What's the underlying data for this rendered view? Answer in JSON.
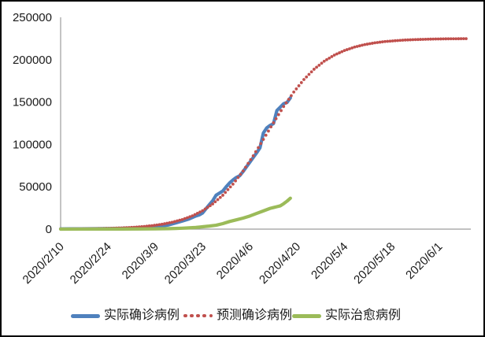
{
  "chart_data": {
    "type": "line",
    "title": "",
    "grid": "off",
    "legend_position": "bottom",
    "x_axis": {
      "tick_labels": [
        "2020/2/10",
        "2020/2/24",
        "2020/3/9",
        "2020/3/23",
        "2020/4/6",
        "2020/4/20",
        "2020/5/4",
        "2020/5/18",
        "2020/6/1"
      ],
      "tick_interval_days": 14,
      "domain_days": [
        0,
        120
      ],
      "label_rotation_deg": 45
    },
    "y_axis": {
      "tick_labels": [
        "0",
        "50000",
        "100000",
        "150000",
        "200000",
        "250000"
      ],
      "min": 0,
      "max": 250000,
      "tick_step": 50000
    },
    "series": [
      {
        "name": "实际确诊病例",
        "color": "#4F81BD",
        "style": "solid",
        "points": [
          [
            0,
            300
          ],
          [
            3,
            350
          ],
          [
            6,
            420
          ],
          [
            9,
            500
          ],
          [
            12,
            600
          ],
          [
            15,
            750
          ],
          [
            18,
            950
          ],
          [
            21,
            1300
          ],
          [
            24,
            1900
          ],
          [
            26,
            2400
          ],
          [
            28,
            3000
          ],
          [
            30,
            3700
          ],
          [
            32,
            5000
          ],
          [
            34,
            7200
          ],
          [
            36,
            9500
          ],
          [
            38,
            12000
          ],
          [
            40,
            15500
          ],
          [
            41,
            16700
          ],
          [
            42,
            19000
          ],
          [
            43,
            24000
          ],
          [
            44,
            28800
          ],
          [
            45,
            33500
          ],
          [
            46,
            40000
          ],
          [
            47,
            42500
          ],
          [
            48,
            45000
          ],
          [
            49,
            50000
          ],
          [
            50,
            54500
          ],
          [
            51,
            58000
          ],
          [
            52,
            61000
          ],
          [
            53,
            63000
          ],
          [
            54,
            68000
          ],
          [
            55,
            73500
          ],
          [
            56,
            79000
          ],
          [
            57,
            84500
          ],
          [
            58,
            90000
          ],
          [
            59,
            96000
          ],
          [
            60,
            113500
          ],
          [
            61,
            119500
          ],
          [
            62,
            122500
          ],
          [
            63,
            124500
          ],
          [
            64,
            140000
          ],
          [
            65,
            144000
          ],
          [
            66,
            148000
          ],
          [
            67,
            149500
          ],
          [
            68,
            155000
          ]
        ]
      },
      {
        "name": "预测确诊病例",
        "color": "#C0504D",
        "style": "dotted",
        "points": [
          [
            0,
            170
          ],
          [
            3,
            250
          ],
          [
            6,
            350
          ],
          [
            9,
            490
          ],
          [
            12,
            710
          ],
          [
            15,
            1000
          ],
          [
            18,
            1420
          ],
          [
            21,
            2010
          ],
          [
            24,
            2860
          ],
          [
            27,
            4050
          ],
          [
            30,
            5730
          ],
          [
            33,
            8070
          ],
          [
            36,
            11300
          ],
          [
            39,
            15700
          ],
          [
            42,
            21700
          ],
          [
            45,
            29700
          ],
          [
            48,
            40000
          ],
          [
            51,
            53100
          ],
          [
            54,
            68600
          ],
          [
            57,
            86500
          ],
          [
            60,
            105900
          ],
          [
            63,
            125600
          ],
          [
            66,
            144700
          ],
          [
            69,
            161800
          ],
          [
            72,
            176600
          ],
          [
            75,
            188700
          ],
          [
            78,
            198200
          ],
          [
            81,
            205400
          ],
          [
            84,
            210800
          ],
          [
            87,
            214900
          ],
          [
            90,
            217800
          ],
          [
            93,
            219900
          ],
          [
            96,
            221400
          ],
          [
            99,
            222400
          ],
          [
            102,
            223200
          ],
          [
            105,
            223700
          ],
          [
            108,
            224100
          ],
          [
            111,
            224400
          ],
          [
            114,
            224600
          ],
          [
            117,
            224700
          ],
          [
            120,
            224800
          ]
        ]
      },
      {
        "name": "实际治愈病例",
        "color": "#9BBB59",
        "style": "solid",
        "points": [
          [
            0,
            30
          ],
          [
            6,
            60
          ],
          [
            12,
            100
          ],
          [
            18,
            150
          ],
          [
            24,
            250
          ],
          [
            28,
            350
          ],
          [
            30,
            450
          ],
          [
            32,
            600
          ],
          [
            34,
            800
          ],
          [
            36,
            1100
          ],
          [
            38,
            1500
          ],
          [
            40,
            2000
          ],
          [
            42,
            2800
          ],
          [
            44,
            3600
          ],
          [
            46,
            4600
          ],
          [
            48,
            6500
          ],
          [
            50,
            9000
          ],
          [
            52,
            11000
          ],
          [
            54,
            13000
          ],
          [
            56,
            15500
          ],
          [
            58,
            18500
          ],
          [
            60,
            21500
          ],
          [
            62,
            24500
          ],
          [
            63,
            25500
          ],
          [
            64,
            26500
          ],
          [
            65,
            27500
          ],
          [
            66,
            30000
          ],
          [
            67,
            33000
          ],
          [
            68,
            36500
          ]
        ]
      }
    ]
  },
  "colors": {
    "axis": "#9c9c9c",
    "text": "#1a1a1a",
    "background": "#ffffff",
    "border": "#000000"
  }
}
